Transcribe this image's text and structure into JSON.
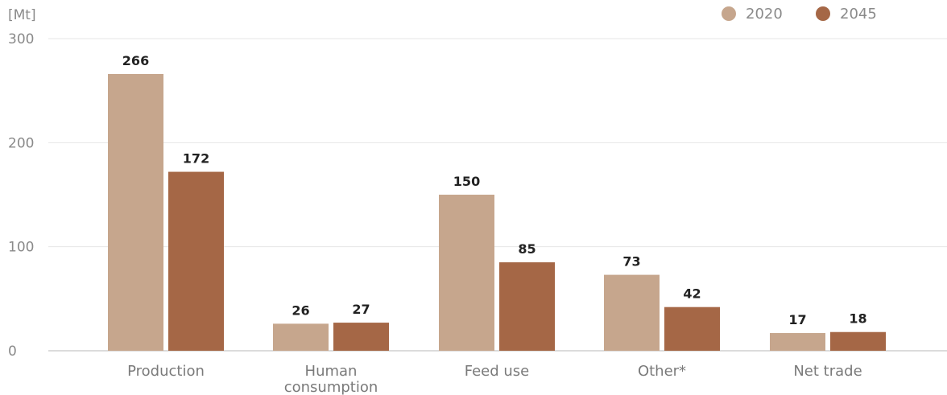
{
  "chart_data": {
    "type": "bar",
    "unit_label": "[Mt]",
    "categories": [
      [
        "Production"
      ],
      [
        "Human",
        "consumption"
      ],
      [
        "Feed use"
      ],
      [
        "Other*"
      ],
      [
        "Net trade"
      ]
    ],
    "series": [
      {
        "name": "2020",
        "color": "#c6a68d",
        "values": [
          266,
          26,
          150,
          73,
          17
        ]
      },
      {
        "name": "2045",
        "color": "#a56746",
        "values": [
          172,
          27,
          85,
          42,
          18
        ]
      }
    ],
    "ylim": [
      0,
      300
    ],
    "yticks": [
      0,
      100,
      200,
      300
    ],
    "grid": true,
    "legend_position": "top-right"
  }
}
